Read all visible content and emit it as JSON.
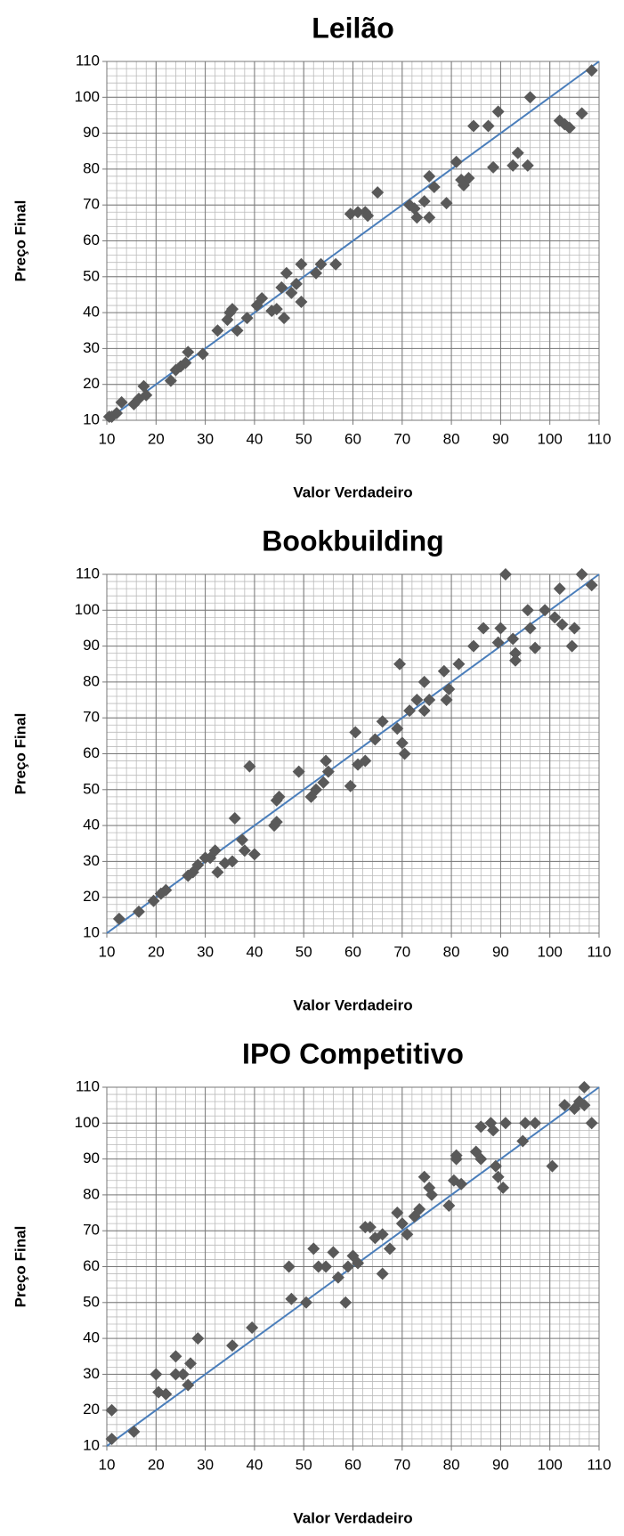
{
  "chart_data": [
    {
      "type": "scatter",
      "title": "Leilão",
      "xlabel": "Valor Verdadeiro",
      "ylabel": "Preço Final",
      "color": "#595959",
      "grid": true,
      "minor_grid_step": 2,
      "xlim": [
        10,
        110
      ],
      "ylim": [
        10,
        110
      ],
      "xticks": [
        10,
        20,
        30,
        40,
        50,
        60,
        70,
        80,
        90,
        100,
        110
      ],
      "yticks": [
        10,
        20,
        30,
        40,
        50,
        60,
        70,
        80,
        90,
        100,
        110
      ],
      "trendline": {
        "x": [
          10,
          110
        ],
        "y": [
          10,
          110
        ],
        "color": "#4a7ebb"
      },
      "x": [
        10.5,
        12,
        13,
        11,
        15.5,
        16.5,
        17.5,
        18,
        23,
        24,
        25,
        26.5,
        26,
        29.5,
        32.5,
        34.5,
        35.5,
        35,
        36.5,
        38.5,
        40.5,
        41.5,
        43.5,
        44.5,
        45.5,
        46,
        46.5,
        47.5,
        48.5,
        49.5,
        49.5,
        52.5,
        53.5,
        56.5,
        59.5,
        61,
        62.5,
        63,
        65,
        71.5,
        72.5,
        73,
        74.5,
        75.5,
        75.5,
        76.5,
        79,
        81,
        82,
        82.5,
        83.5,
        84.5,
        87.5,
        88.5,
        89.5,
        92.5,
        93.5,
        95.5,
        96,
        102,
        103,
        104,
        106.5,
        108.5
      ],
      "y": [
        11,
        12,
        15,
        11,
        14.5,
        16,
        19.5,
        17,
        21,
        24,
        25,
        29,
        26,
        28.5,
        35,
        38,
        41,
        40,
        35,
        38.5,
        42,
        44,
        40.5,
        41,
        47,
        38.5,
        51,
        45.5,
        48,
        53.5,
        43,
        51,
        53.5,
        53.5,
        67.5,
        68,
        68,
        67,
        73.5,
        70,
        69,
        66.5,
        71,
        78,
        66.5,
        75,
        70.5,
        82,
        77,
        75.5,
        77.5,
        92,
        92,
        80.5,
        96,
        81,
        84.5,
        81,
        100,
        93.5,
        92.5,
        91.5,
        95.5,
        107.5
      ]
    },
    {
      "type": "scatter",
      "title": "Bookbuilding",
      "xlabel": "Valor Verdadeiro",
      "ylabel": "Preço Final",
      "color": "#595959",
      "grid": true,
      "minor_grid_step": 2,
      "xlim": [
        10,
        110
      ],
      "ylim": [
        10,
        110
      ],
      "xticks": [
        10,
        20,
        30,
        40,
        50,
        60,
        70,
        80,
        90,
        100,
        110
      ],
      "yticks": [
        10,
        20,
        30,
        40,
        50,
        60,
        70,
        80,
        90,
        100,
        110
      ],
      "trendline": {
        "x": [
          10,
          110
        ],
        "y": [
          10,
          110
        ],
        "color": "#4a7ebb"
      },
      "x": [
        12.5,
        16.5,
        19.5,
        21,
        22,
        26.5,
        27.5,
        28.5,
        30,
        31,
        32,
        32.5,
        34,
        35.5,
        36,
        37.5,
        38,
        39,
        40,
        44,
        44.5,
        44.5,
        45,
        49,
        51.5,
        52.5,
        54,
        54.5,
        55,
        59.5,
        60.5,
        61,
        62.5,
        64.5,
        66,
        69,
        69.5,
        70,
        70.5,
        71.5,
        73,
        74.5,
        74.5,
        75.5,
        78.5,
        79,
        79.5,
        81.5,
        84.5,
        86.5,
        89.5,
        90,
        91,
        92.5,
        93,
        93,
        95.5,
        96,
        97,
        99,
        101,
        102,
        102.5,
        104.5,
        105,
        106.5,
        108.5
      ],
      "y": [
        14,
        16,
        19,
        21,
        22,
        26,
        27,
        29,
        31,
        31,
        33,
        27,
        29.5,
        30,
        42,
        36,
        33,
        56.5,
        32,
        40,
        41,
        47,
        48,
        55,
        48,
        50,
        52,
        58,
        55,
        51,
        66,
        57,
        58,
        64,
        69,
        67,
        85,
        63,
        60,
        72,
        75,
        72,
        80,
        75,
        83,
        75,
        78,
        85,
        90,
        95,
        91,
        95,
        110,
        92,
        88,
        86,
        100,
        95,
        89.5,
        100,
        98,
        106,
        96,
        90,
        95,
        110,
        107
      ]
    },
    {
      "type": "scatter",
      "title": "IPO Competitivo",
      "xlabel": "Valor Verdadeiro",
      "ylabel": "Preço Final",
      "color": "#595959",
      "grid": true,
      "minor_grid_step": 2,
      "xlim": [
        10,
        110
      ],
      "ylim": [
        10,
        110
      ],
      "xticks": [
        10,
        20,
        30,
        40,
        50,
        60,
        70,
        80,
        90,
        100,
        110
      ],
      "yticks": [
        10,
        20,
        30,
        40,
        50,
        60,
        70,
        80,
        90,
        100,
        110
      ],
      "trendline": {
        "x": [
          10,
          110
        ],
        "y": [
          10,
          110
        ],
        "color": "#4a7ebb"
      },
      "x": [
        11,
        11,
        15.5,
        20,
        20.5,
        22,
        24,
        24,
        25.5,
        26.5,
        27,
        28.5,
        35.5,
        39.5,
        47,
        47.5,
        50.5,
        52,
        53,
        54.5,
        56,
        57,
        58.5,
        59,
        60,
        61,
        62.5,
        63.5,
        64.5,
        66,
        66,
        67.5,
        69,
        70,
        71,
        72.5,
        73.5,
        74.5,
        75.5,
        76,
        79.5,
        80.5,
        81,
        81,
        82,
        85,
        86,
        86,
        88,
        88.5,
        89,
        89.5,
        90.5,
        91,
        94.5,
        95,
        97,
        100.5,
        103,
        105,
        106,
        107,
        107,
        108.5
      ],
      "y": [
        12,
        20,
        14,
        30,
        25,
        24.5,
        35,
        30,
        30,
        27,
        33,
        40,
        38,
        43,
        60,
        51,
        50,
        65,
        60,
        60,
        64,
        57,
        50,
        60,
        63,
        61,
        71,
        71,
        68,
        58,
        69,
        65,
        75,
        72,
        69,
        74,
        76,
        85,
        82,
        80,
        77,
        84,
        91,
        90,
        83,
        92,
        90,
        99,
        100,
        98,
        88,
        85,
        82,
        100,
        95,
        100,
        100,
        88,
        105,
        104,
        106,
        110,
        105,
        100
      ]
    }
  ]
}
